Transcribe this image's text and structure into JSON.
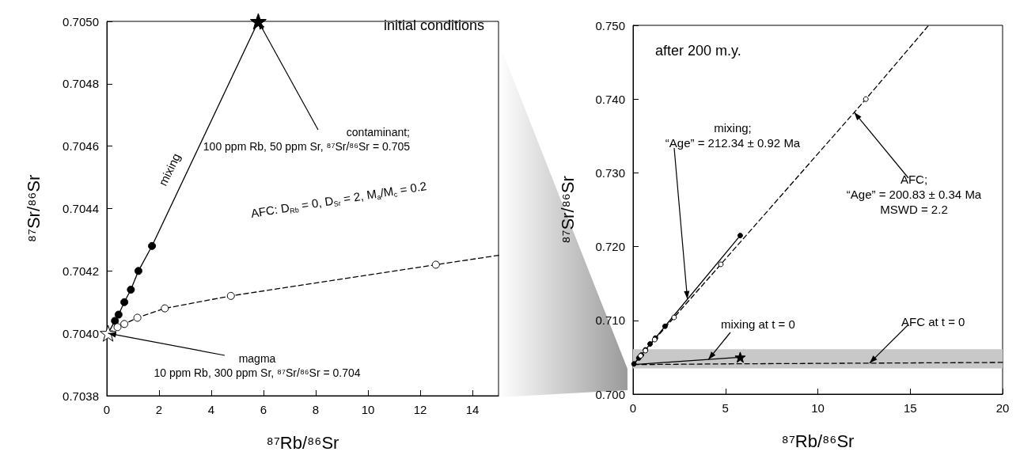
{
  "chart_data": [
    {
      "type": "line",
      "xlabel": "⁸⁷Rb/⁸⁶Sr",
      "ylabel": "⁸⁷Sr/⁸⁶Sr",
      "xlim": [
        0,
        15
      ],
      "xticks": [
        0,
        2,
        4,
        6,
        8,
        10,
        12,
        14
      ],
      "ylim": [
        0.7038,
        0.705
      ],
      "yticks": [
        0.7038,
        {
          "value": 0.704,
          "label": "0.7040"
        },
        0.7042,
        0.7044,
        0.7046,
        0.7048,
        {
          "value": 0.705,
          "label": "0.7050"
        }
      ],
      "grid": false,
      "series": [
        {
          "type": "line",
          "line_style": "solid",
          "marker": "none",
          "color": "#000000",
          "x": [
            0.05,
            0.31,
            0.45,
            0.67,
            0.92,
            1.21,
            1.73,
            5.8
          ],
          "values": [
            0.704,
            0.70404,
            0.70406,
            0.7041,
            0.70414,
            0.7042,
            0.70428,
            0.705
          ]
        },
        {
          "type": "scatter",
          "marker": "circle",
          "color": "#000000",
          "x": [
            0.31,
            0.45,
            0.67,
            0.92,
            1.21,
            1.73
          ],
          "values": [
            0.70404,
            0.70406,
            0.7041,
            0.70414,
            0.7042,
            0.70428
          ]
        },
        {
          "type": "line",
          "line_style": "dashed",
          "marker": "none",
          "color": "#000000",
          "x": [
            0.05,
            0.41,
            0.67,
            1.17,
            2.22,
            4.75,
            12.6,
            15
          ],
          "values": [
            0.704,
            0.70402,
            0.70403,
            0.70405,
            0.70408,
            0.70412,
            0.70422,
            0.70425
          ]
        },
        {
          "type": "scatter",
          "marker": "circle",
          "color": "#ffffff",
          "x": [
            0.41,
            0.67,
            1.17,
            2.22,
            4.75,
            12.6
          ],
          "values": [
            0.70402,
            0.70403,
            0.70405,
            0.70408,
            0.70412,
            0.70422
          ]
        },
        {
          "type": "scatter",
          "marker": "star",
          "color": "#ffffff",
          "x": [
            0.05
          ],
          "values": [
            0.704
          ]
        },
        {
          "type": "scatter",
          "marker": "star",
          "color": "#000000",
          "x": [
            5.8
          ],
          "values": [
            0.705
          ]
        }
      ],
      "annotations": [
        "initial conditions",
        "mixing",
        {
          "text": "contaminant;\n100 ppm Rb, 50 ppm Sr, ⁸⁷Sr/⁸⁶Sr = 0.705",
          "x": 5.8,
          "y": 0.705
        },
        "AFC: D$_{Rb}$ = 0, D$_{Sr}$ = 2, M$_{a}$/M$_{c}$ = 0.2",
        {
          "text": "magma\n10 ppm Rb, 300 ppm Sr, ⁸⁷Sr/⁸⁶Sr = 0.704",
          "x": 0.05,
          "y": 0.704
        }
      ]
    },
    {
      "type": "line",
      "xlabel": "⁸⁷Rb/⁸⁶Sr",
      "ylabel": "⁸⁷Sr/⁸⁶Sr",
      "xlim": [
        0,
        20
      ],
      "xticks": [
        0,
        5,
        10,
        15,
        20
      ],
      "ylim": [
        0.7,
        0.75
      ],
      "yticks": [
        {
          "value": 0.7,
          "label": "0.700"
        },
        {
          "value": 0.71,
          "label": "0.710"
        },
        {
          "value": 0.72,
          "label": "0.720"
        },
        {
          "value": 0.73,
          "label": "0.730"
        },
        {
          "value": 0.74,
          "label": "0.740"
        },
        {
          "value": 0.75,
          "label": "0.750"
        }
      ],
      "grid": false,
      "bands": [
        {
          "axis": "y",
          "from": 0.7035,
          "to": 0.7061,
          "color": "#c8c8c8"
        }
      ],
      "series": [
        {
          "type": "line",
          "line_style": "dashed",
          "marker": "none",
          "color": "#000000",
          "x": [
            0.05,
            4.75,
            12.6,
            20
          ],
          "values": [
            0.704,
            0.7041,
            0.7042,
            0.7043
          ]
        },
        {
          "type": "line",
          "line_style": "solid",
          "marker": "none",
          "color": "#000000",
          "x": [
            0.05,
            5.8
          ],
          "values": [
            0.704,
            0.705
          ]
        },
        {
          "type": "scatter",
          "marker": "star",
          "color": "#000000",
          "x": [
            5.8
          ],
          "values": [
            0.705
          ]
        },
        {
          "type": "line",
          "line_style": "dashed",
          "marker": "none",
          "color": "#000000",
          "x": [
            0.05,
            0.41,
            0.67,
            1.17,
            2.22,
            4.75,
            12.6,
            16
          ],
          "values": [
            0.7041,
            0.7052,
            0.7059,
            0.7074,
            0.7104,
            0.7176,
            0.74,
            0.75
          ]
        },
        {
          "type": "scatter",
          "marker": "circle",
          "color": "#ffffff",
          "x": [
            0.41,
            0.67,
            1.17,
            2.22,
            4.75,
            12.6
          ],
          "values": [
            0.7052,
            0.7059,
            0.7074,
            0.7104,
            0.7176,
            0.74
          ]
        },
        {
          "type": "line",
          "line_style": "solid",
          "marker": "circle",
          "color": "#000000",
          "x": [
            0.05,
            0.31,
            0.45,
            0.67,
            0.92,
            1.21,
            1.73,
            5.8
          ],
          "values": [
            0.7041,
            0.7049,
            0.7053,
            0.706,
            0.7068,
            0.7076,
            0.7092,
            0.7215
          ]
        }
      ],
      "annotations": [
        "after 200 m.y.",
        {
          "text": "mixing;\n“Age” = 212.34 ± 0.92 Ma",
          "x": 2.94,
          "y": 0.7129
        },
        {
          "text": "AFC;\n“Age” = 200.83 ± 0.34 Ma\nMSWD = 2.2",
          "x": 11.97,
          "y": 0.7382
        },
        {
          "text": "mixing at t = 0",
          "x": 4.08,
          "y": 0.7047
        },
        {
          "text": "AFC at t = 0",
          "x": 12.8,
          "y": 0.7042
        }
      ]
    }
  ]
}
